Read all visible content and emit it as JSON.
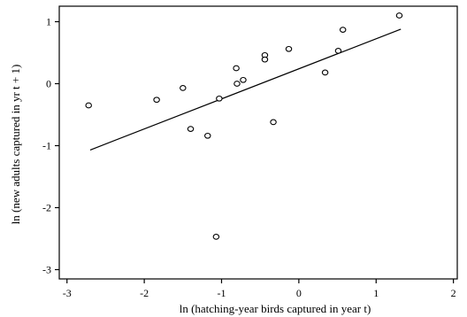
{
  "chart_data": {
    "type": "scatter",
    "title": "",
    "xlabel": "ln (hatching-year birds captured in year t)",
    "ylabel": "ln (new adults captured in yr t + 1)",
    "xlim": [
      -3.1,
      2.05
    ],
    "ylim": [
      -3.15,
      1.25
    ],
    "x_ticks": [
      -3,
      -2,
      -1,
      0,
      1,
      2
    ],
    "y_ticks": [
      -3,
      -2,
      -1,
      0,
      1
    ],
    "x_tick_labels": [
      "-3",
      "-2",
      "-1",
      "0",
      "1",
      "2"
    ],
    "y_tick_labels": [
      "-3",
      "-2",
      "-1",
      "0",
      "1"
    ],
    "grid": false,
    "series": [
      {
        "points": [
          {
            "x": -2.72,
            "y": -0.35
          },
          {
            "x": -1.84,
            "y": -0.26
          },
          {
            "x": -1.5,
            "y": -0.07
          },
          {
            "x": -1.4,
            "y": -0.73
          },
          {
            "x": -1.18,
            "y": -0.84
          },
          {
            "x": -1.03,
            "y": -0.24
          },
          {
            "x": -1.07,
            "y": -2.47
          },
          {
            "x": -0.81,
            "y": 0.25
          },
          {
            "x": -0.8,
            "y": 0.0
          },
          {
            "x": -0.72,
            "y": 0.06
          },
          {
            "x": -0.44,
            "y": 0.46
          },
          {
            "x": -0.44,
            "y": 0.39
          },
          {
            "x": -0.33,
            "y": -0.62
          },
          {
            "x": -0.13,
            "y": 0.56
          },
          {
            "x": 0.34,
            "y": 0.18
          },
          {
            "x": 0.51,
            "y": 0.53
          },
          {
            "x": 0.57,
            "y": 0.87
          },
          {
            "x": 1.3,
            "y": 1.1
          }
        ]
      }
    ],
    "fit_line": {
      "x": [
        -2.7,
        1.32
      ],
      "y": [
        -1.07,
        0.88
      ]
    }
  }
}
